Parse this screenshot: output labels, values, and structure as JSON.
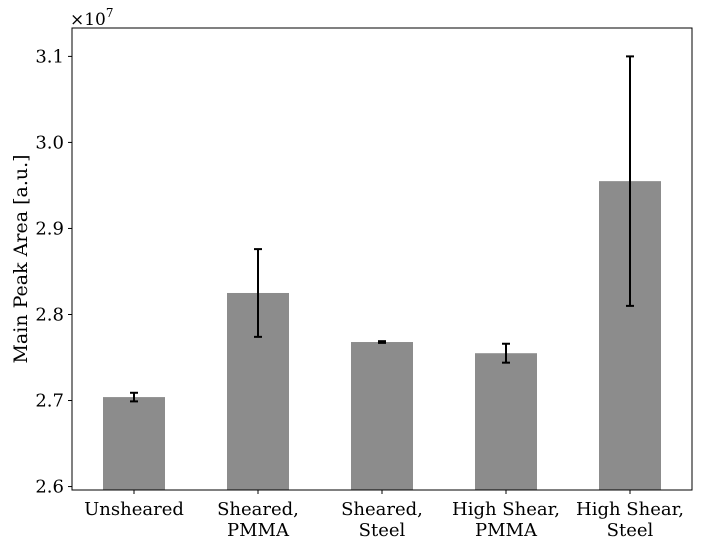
{
  "chart_data": {
    "type": "bar",
    "categories": [
      [
        "Unsheared"
      ],
      [
        "Sheared,",
        "PMMA"
      ],
      [
        "Sheared,",
        "Steel"
      ],
      [
        "High Shear,",
        "PMMA"
      ],
      [
        "High Shear,",
        "Steel"
      ]
    ],
    "values": [
      2.704,
      2.825,
      2.768,
      2.755,
      2.955
    ],
    "errors": [
      0.005,
      0.051,
      0.001,
      0.011,
      0.145
    ],
    "multiplier_label": "×10",
    "multiplier_exponent": "7",
    "ylabel": "Main Peak Area [a.u.]",
    "ylim": [
      2.596,
      3.133
    ],
    "yticks": [
      2.6,
      2.7,
      2.8,
      2.9,
      3.0,
      3.1
    ],
    "ytick_labels": [
      "2.6",
      "2.7",
      "2.8",
      "2.9",
      "3.0",
      "3.1"
    ],
    "bar_color": "#8c8c8c",
    "error_color": "#000000",
    "grid": false,
    "legend": "none"
  }
}
